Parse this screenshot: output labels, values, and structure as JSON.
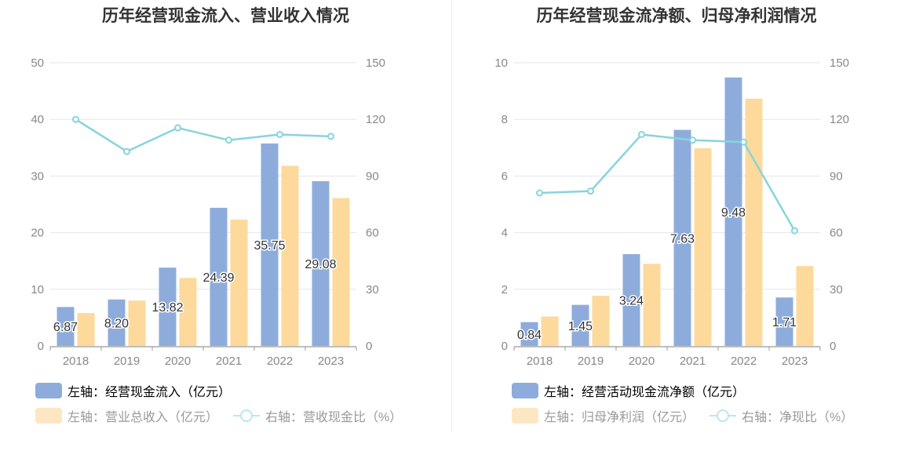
{
  "chart_data": [
    {
      "type": "bar",
      "title": "历年经营现金流入、营业收入情况",
      "categories": [
        "2018",
        "2019",
        "2020",
        "2021",
        "2022",
        "2023"
      ],
      "left_axis": {
        "ticks": [
          "0",
          "10",
          "20",
          "30",
          "40",
          "50"
        ],
        "ylim": [
          0,
          50
        ]
      },
      "right_axis": {
        "ticks": [
          "0",
          "30",
          "60",
          "90",
          "120",
          "150"
        ],
        "ylim": [
          0,
          150
        ]
      },
      "series": [
        {
          "name": "左轴：经营现金流入（亿元）",
          "kind": "bar",
          "axis": "left",
          "color": "#8eacdb",
          "values": [
            6.87,
            8.2,
            13.82,
            24.39,
            35.75,
            29.08
          ],
          "labels": [
            "6.87",
            "8.20",
            "13.82",
            "24.39",
            "35.75",
            "29.08"
          ]
        },
        {
          "name": "左轴：营业总收入（亿元）",
          "kind": "bar",
          "axis": "left",
          "color": "#fdd99b",
          "values": [
            5.8,
            8.0,
            12.0,
            22.3,
            31.8,
            26.1
          ]
        },
        {
          "name": "右轴：营收现金比（%）",
          "kind": "line",
          "axis": "right",
          "color": "#87d4dc",
          "values": [
            120,
            103,
            115.5,
            109,
            112,
            111
          ]
        }
      ]
    },
    {
      "type": "bar",
      "title": "历年经营现金流净额、归母净利润情况",
      "categories": [
        "2018",
        "2019",
        "2020",
        "2021",
        "2022",
        "2023"
      ],
      "left_axis": {
        "ticks": [
          "0",
          "2",
          "4",
          "6",
          "8",
          "10"
        ],
        "ylim": [
          0,
          10
        ]
      },
      "right_axis": {
        "ticks": [
          "0",
          "30",
          "60",
          "90",
          "120",
          "150"
        ],
        "ylim": [
          0,
          150
        ]
      },
      "series": [
        {
          "name": "左轴：经营活动现金流净额（亿元）",
          "kind": "bar",
          "axis": "left",
          "color": "#8eacdb",
          "values": [
            0.84,
            1.45,
            3.24,
            7.63,
            9.48,
            1.71
          ],
          "labels": [
            "0.84",
            "1.45",
            "3.24",
            "7.63",
            "9.48",
            "1.71"
          ]
        },
        {
          "name": "左轴：归母净利润（亿元）",
          "kind": "bar",
          "axis": "left",
          "color": "#fdd99b",
          "values": [
            1.04,
            1.77,
            2.9,
            6.98,
            8.73,
            2.82
          ]
        },
        {
          "name": "右轴：净现比（%）",
          "kind": "line",
          "axis": "right",
          "color": "#87d4dc",
          "values": [
            81,
            82,
            112,
            109,
            108,
            61
          ]
        }
      ]
    }
  ]
}
